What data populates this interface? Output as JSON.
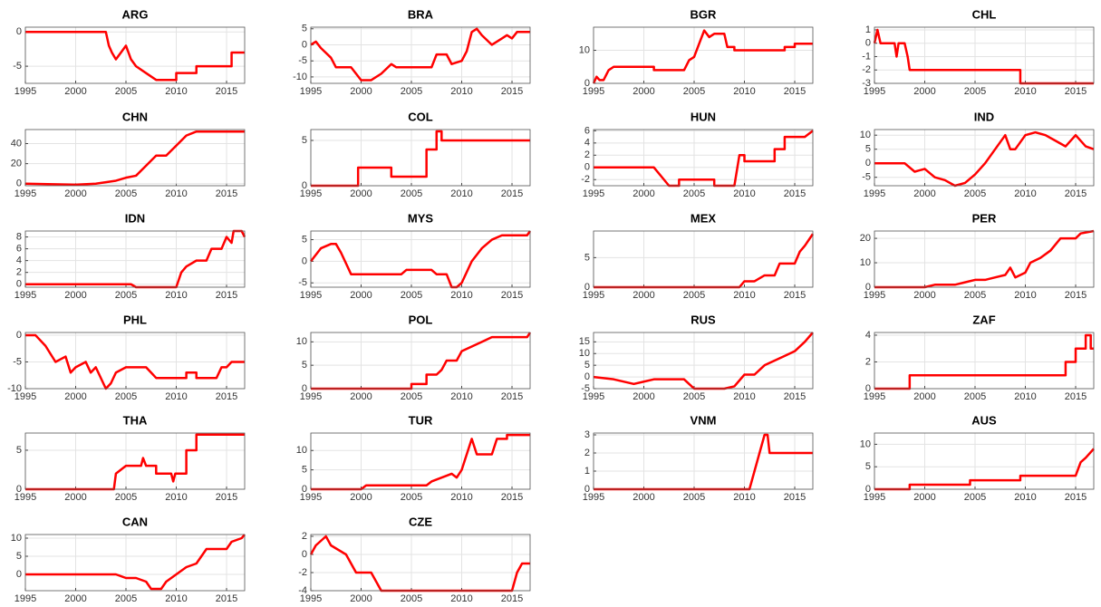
{
  "chart_data": [
    {
      "type": "line",
      "title": "ARG",
      "color": "#ff0000",
      "grid": true,
      "xlim": [
        1995,
        2016.8
      ],
      "xticks": [
        1995,
        2000,
        2005,
        2010,
        2015
      ],
      "ylim": [
        -7.5,
        0.7
      ],
      "yticks": [
        -5,
        0
      ],
      "x": [
        1995,
        2003,
        2003.3,
        2003.6,
        2004,
        2004.5,
        2005,
        2005.5,
        2006,
        2007,
        2008,
        2010,
        2010,
        2012,
        2012,
        2015.5,
        2015.5,
        2016.8
      ],
      "values": [
        0,
        0,
        -2,
        -3,
        -4,
        -3,
        -2,
        -4,
        -5,
        -6,
        -7,
        -7,
        -6,
        -6,
        -5,
        -5,
        -3,
        -3
      ]
    },
    {
      "type": "line",
      "title": "BRA",
      "color": "#ff0000",
      "grid": true,
      "xlim": [
        1995,
        2016.8
      ],
      "xticks": [
        1995,
        2000,
        2005,
        2010,
        2015
      ],
      "ylim": [
        -12,
        5.5
      ],
      "yticks": [
        -10,
        -5,
        0,
        5
      ],
      "x": [
        1995,
        1995.5,
        1996,
        1997,
        1997.5,
        1999,
        1999.5,
        2000,
        2001,
        2002,
        2003,
        2003.5,
        2007,
        2007.5,
        2008.5,
        2009,
        2010,
        2010.5,
        2011,
        2011.5,
        2012,
        2013,
        2013.5,
        2014,
        2014.5,
        2015,
        2015.5,
        2016.8
      ],
      "values": [
        0,
        1,
        -1,
        -4,
        -7,
        -7,
        -9,
        -11,
        -11,
        -9,
        -6,
        -7,
        -7,
        -3,
        -3,
        -6,
        -5,
        -2,
        4,
        5,
        3,
        0,
        1,
        2,
        3,
        2,
        4,
        4
      ]
    },
    {
      "type": "line",
      "title": "BGR",
      "color": "#ff0000",
      "grid": true,
      "xlim": [
        1995,
        2016.8
      ],
      "xticks": [
        1995,
        2000,
        2005,
        2010,
        2015
      ],
      "ylim": [
        0,
        17
      ],
      "yticks": [
        0,
        10
      ],
      "x": [
        1995,
        1995.3,
        1995.6,
        1996,
        1996.5,
        1997,
        2001,
        2001,
        2004,
        2004.5,
        2005,
        2005.5,
        2006,
        2006.5,
        2007,
        2008,
        2008.3,
        2009,
        2009,
        2014,
        2014,
        2015,
        2015,
        2016.8
      ],
      "values": [
        0,
        2,
        1,
        1,
        4,
        5,
        5,
        4,
        4,
        7,
        8,
        12,
        16,
        14,
        15,
        15,
        11,
        11,
        10,
        10,
        11,
        11,
        12,
        12
      ]
    },
    {
      "type": "line",
      "title": "CHL",
      "color": "#ff0000",
      "grid": true,
      "xlim": [
        1995,
        2016.8
      ],
      "xticks": [
        1995,
        2000,
        2005,
        2010,
        2015
      ],
      "ylim": [
        -3,
        1.2
      ],
      "yticks": [
        -3,
        -2,
        -1,
        0,
        1
      ],
      "x": [
        1995,
        1995.3,
        1995.6,
        1997,
        1997.2,
        1997.4,
        1998,
        1998.3,
        1998.5,
        2009.5,
        2009.5,
        2016.8
      ],
      "values": [
        0,
        1,
        0,
        0,
        -1,
        0,
        0,
        -1,
        -2,
        -2,
        -3,
        -3
      ]
    },
    {
      "type": "line",
      "title": "CHN",
      "color": "#ff0000",
      "grid": true,
      "xlim": [
        1995,
        2016.8
      ],
      "xticks": [
        1995,
        2000,
        2005,
        2010,
        2015
      ],
      "ylim": [
        -2,
        54
      ],
      "yticks": [
        0,
        20,
        40
      ],
      "x": [
        1995,
        2000,
        2002,
        2004,
        2005,
        2006,
        2007,
        2008,
        2009,
        2010,
        2011,
        2012,
        2016.8
      ],
      "values": [
        0,
        -1,
        0,
        3,
        6,
        8,
        18,
        28,
        28,
        38,
        48,
        52,
        52
      ]
    },
    {
      "type": "line",
      "title": "COL",
      "color": "#ff0000",
      "grid": true,
      "xlim": [
        1995,
        2016.8
      ],
      "xticks": [
        1995,
        2000,
        2005,
        2010,
        2015
      ],
      "ylim": [
        0,
        6.2
      ],
      "yticks": [
        0,
        5
      ],
      "x": [
        1995,
        1999.7,
        1999.7,
        2003,
        2003,
        2006.5,
        2006.5,
        2007.5,
        2007.5,
        2008,
        2008,
        2016.8
      ],
      "values": [
        0,
        0,
        2,
        2,
        1,
        1,
        4,
        4,
        6,
        6,
        5,
        5
      ]
    },
    {
      "type": "line",
      "title": "HUN",
      "color": "#ff0000",
      "grid": true,
      "xlim": [
        1995,
        2016.8
      ],
      "xticks": [
        1995,
        2000,
        2005,
        2010,
        2015
      ],
      "ylim": [
        -3,
        6.2
      ],
      "yticks": [
        -2,
        0,
        2,
        4,
        6
      ],
      "x": [
        1995,
        2001,
        2002,
        2002.5,
        2003.5,
        2003.5,
        2007,
        2007,
        2009,
        2009.5,
        2010,
        2010,
        2013,
        2013,
        2014,
        2014,
        2016,
        2016.8
      ],
      "values": [
        0,
        0,
        -2,
        -3,
        -3,
        -2,
        -2,
        -3,
        -3,
        2,
        2,
        1,
        1,
        3,
        3,
        5,
        5,
        6
      ]
    },
    {
      "type": "line",
      "title": "IND",
      "color": "#ff0000",
      "grid": true,
      "xlim": [
        1995,
        2016.8
      ],
      "xticks": [
        1995,
        2000,
        2005,
        2010,
        2015
      ],
      "ylim": [
        -8,
        12
      ],
      "yticks": [
        -5,
        0,
        5,
        10
      ],
      "x": [
        1995,
        1998,
        1999,
        2000,
        2001,
        2002,
        2003,
        2004,
        2005,
        2006,
        2007,
        2008,
        2008.5,
        2009,
        2010,
        2011,
        2012,
        2013,
        2014,
        2015,
        2016,
        2016.8
      ],
      "values": [
        0,
        0,
        -3,
        -2,
        -5,
        -6,
        -8,
        -7,
        -4,
        0,
        5,
        10,
        5,
        5,
        10,
        11,
        10,
        8,
        6,
        10,
        6,
        5
      ]
    },
    {
      "type": "line",
      "title": "IDN",
      "color": "#ff0000",
      "grid": true,
      "xlim": [
        1995,
        2016.8
      ],
      "xticks": [
        1995,
        2000,
        2005,
        2010,
        2015
      ],
      "ylim": [
        -0.5,
        9
      ],
      "yticks": [
        0,
        2,
        4,
        6,
        8
      ],
      "x": [
        1995,
        2005.5,
        2006,
        2010,
        2010.5,
        2011,
        2012,
        2013,
        2013.5,
        2014.5,
        2015,
        2015.5,
        2015.7,
        2016.5,
        2016.8
      ],
      "values": [
        0,
        0,
        -0.5,
        -0.5,
        2,
        3,
        4,
        4,
        6,
        6,
        8,
        7,
        9,
        9,
        8
      ]
    },
    {
      "type": "line",
      "title": "MYS",
      "color": "#ff0000",
      "grid": true,
      "xlim": [
        1995,
        2016.8
      ],
      "xticks": [
        1995,
        2000,
        2005,
        2010,
        2015
      ],
      "ylim": [
        -6,
        7
      ],
      "yticks": [
        -5,
        0,
        5
      ],
      "x": [
        1995,
        1996,
        1997,
        1997.5,
        1998,
        1999,
        2004,
        2004.5,
        2007,
        2007.5,
        2008.5,
        2009,
        2009.5,
        2010,
        2011,
        2012,
        2013,
        2014,
        2016.5,
        2016.8
      ],
      "values": [
        0,
        3,
        4,
        4,
        2,
        -3,
        -3,
        -2,
        -2,
        -3,
        -3,
        -6,
        -6,
        -5,
        0,
        3,
        5,
        6,
        6,
        7
      ]
    },
    {
      "type": "line",
      "title": "MEX",
      "color": "#ff0000",
      "grid": true,
      "xlim": [
        1995,
        2016.8
      ],
      "xticks": [
        1995,
        2000,
        2005,
        2010,
        2015
      ],
      "ylim": [
        0,
        9.5
      ],
      "yticks": [
        0,
        5
      ],
      "x": [
        1995,
        2009.5,
        2010,
        2011,
        2012,
        2013,
        2013.5,
        2015,
        2015.5,
        2016,
        2016.8
      ],
      "values": [
        0,
        0,
        1,
        1,
        2,
        2,
        4,
        4,
        6,
        7,
        9
      ]
    },
    {
      "type": "line",
      "title": "PER",
      "color": "#ff0000",
      "grid": true,
      "xlim": [
        1995,
        2016.8
      ],
      "xticks": [
        1995,
        2000,
        2005,
        2010,
        2015
      ],
      "ylim": [
        0,
        23
      ],
      "yticks": [
        0,
        10,
        20
      ],
      "x": [
        1995,
        2000,
        2001,
        2003,
        2004,
        2005,
        2006,
        2007,
        2008,
        2008.5,
        2009,
        2010,
        2010.5,
        2011.5,
        2012.5,
        2013.5,
        2015,
        2015.5,
        2016.8
      ],
      "values": [
        0,
        0,
        1,
        1,
        2,
        3,
        3,
        4,
        5,
        8,
        4,
        6,
        10,
        12,
        15,
        20,
        20,
        22,
        23
      ]
    },
    {
      "type": "line",
      "title": "PHL",
      "color": "#ff0000",
      "grid": true,
      "xlim": [
        1995,
        2016.8
      ],
      "xticks": [
        1995,
        2000,
        2005,
        2010,
        2015
      ],
      "ylim": [
        -10,
        0.5
      ],
      "yticks": [
        -10,
        -5,
        0
      ],
      "x": [
        1995,
        1996,
        1997,
        1998,
        1999,
        1999.5,
        2000,
        2001,
        2001.5,
        2002,
        2003,
        2003.5,
        2004,
        2005,
        2007,
        2007.5,
        2008,
        2011,
        2011,
        2012,
        2012,
        2014,
        2014.5,
        2015,
        2015.5,
        2016.8
      ],
      "values": [
        0,
        0,
        -2,
        -5,
        -4,
        -7,
        -6,
        -5,
        -7,
        -6,
        -10,
        -9,
        -7,
        -6,
        -6,
        -7,
        -8,
        -8,
        -7,
        -7,
        -8,
        -8,
        -6,
        -6,
        -5,
        -5
      ]
    },
    {
      "type": "line",
      "title": "POL",
      "color": "#ff0000",
      "grid": true,
      "xlim": [
        1995,
        2016.8
      ],
      "xticks": [
        1995,
        2000,
        2005,
        2010,
        2015
      ],
      "ylim": [
        0,
        12
      ],
      "yticks": [
        0,
        5,
        10
      ],
      "x": [
        1995,
        2005,
        2005,
        2006.5,
        2006.5,
        2007.5,
        2008,
        2008.5,
        2009.5,
        2010,
        2011,
        2012,
        2013,
        2016.5,
        2016.8
      ],
      "values": [
        0,
        0,
        1,
        1,
        3,
        3,
        4,
        6,
        6,
        8,
        9,
        10,
        11,
        11,
        12
      ]
    },
    {
      "type": "line",
      "title": "RUS",
      "color": "#ff0000",
      "grid": true,
      "xlim": [
        1995,
        2016.8
      ],
      "xticks": [
        1995,
        2000,
        2005,
        2010,
        2015
      ],
      "ylim": [
        -5,
        19
      ],
      "yticks": [
        -5,
        0,
        5,
        10,
        15
      ],
      "x": [
        1995,
        1997,
        1999,
        2000,
        2001,
        2004,
        2005,
        2008,
        2009,
        2010,
        2011,
        2012,
        2013,
        2014,
        2015,
        2016,
        2016.8
      ],
      "values": [
        0,
        -1,
        -3,
        -2,
        -1,
        -1,
        -5,
        -5,
        -4,
        1,
        1,
        5,
        7,
        9,
        11,
        15,
        19
      ]
    },
    {
      "type": "line",
      "title": "ZAF",
      "color": "#ff0000",
      "grid": true,
      "xlim": [
        1995,
        2016.8
      ],
      "xticks": [
        1995,
        2000,
        2005,
        2010,
        2015
      ],
      "ylim": [
        0,
        4.2
      ],
      "yticks": [
        0,
        2,
        4
      ],
      "x": [
        1995,
        1998.5,
        1998.5,
        2014,
        2014,
        2015,
        2015,
        2016,
        2016,
        2016.5,
        2016.5,
        2016.8
      ],
      "values": [
        0,
        0,
        1,
        1,
        2,
        2,
        3,
        3,
        4,
        4,
        3,
        3
      ]
    },
    {
      "type": "line",
      "title": "THA",
      "color": "#ff0000",
      "grid": true,
      "xlim": [
        1995,
        2016.8
      ],
      "xticks": [
        1995,
        2000,
        2005,
        2010,
        2015
      ],
      "ylim": [
        0,
        7.2
      ],
      "yticks": [
        0,
        5
      ],
      "x": [
        1995,
        2003.8,
        2004,
        2005,
        2006.5,
        2006.7,
        2007,
        2008,
        2008,
        2009.5,
        2009.7,
        2009.9,
        2011,
        2011,
        2012,
        2012,
        2016.8
      ],
      "values": [
        0,
        0,
        2,
        3,
        3,
        4,
        3,
        3,
        2,
        2,
        1,
        2,
        2,
        5,
        5,
        7,
        7
      ]
    },
    {
      "type": "line",
      "title": "TUR",
      "color": "#ff0000",
      "grid": true,
      "xlim": [
        1995,
        2016.8
      ],
      "xticks": [
        1995,
        2000,
        2005,
        2010,
        2015
      ],
      "ylim": [
        0,
        14.5
      ],
      "yticks": [
        0,
        5,
        10
      ],
      "x": [
        1995,
        2000,
        2000.5,
        2006.5,
        2007,
        2008,
        2009,
        2009.5,
        2010,
        2011,
        2011.5,
        2013,
        2013.5,
        2014.5,
        2014.5,
        2016.8
      ],
      "values": [
        0,
        0,
        1,
        1,
        2,
        3,
        4,
        3,
        5,
        13,
        9,
        9,
        13,
        13,
        14,
        14
      ]
    },
    {
      "type": "line",
      "title": "VNM",
      "color": "#ff0000",
      "grid": true,
      "xlim": [
        1995,
        2016.8
      ],
      "xticks": [
        1995,
        2000,
        2005,
        2010,
        2015
      ],
      "ylim": [
        0,
        3.1
      ],
      "yticks": [
        0,
        1,
        2,
        3
      ],
      "x": [
        1995,
        2010.5,
        2011,
        2011.5,
        2012,
        2012.3,
        2012.5,
        2016.8
      ],
      "values": [
        0,
        0,
        1,
        2,
        3,
        3,
        2,
        2
      ]
    },
    {
      "type": "line",
      "title": "AUS",
      "color": "#ff0000",
      "grid": true,
      "xlim": [
        1995,
        2016.8
      ],
      "xticks": [
        1995,
        2000,
        2005,
        2010,
        2015
      ],
      "ylim": [
        0,
        12.5
      ],
      "yticks": [
        0,
        5,
        10
      ],
      "x": [
        1995,
        1998.5,
        1998.5,
        2004.5,
        2004.5,
        2009.5,
        2009.5,
        2015,
        2015.5,
        2016,
        2016.8
      ],
      "values": [
        0,
        0,
        1,
        1,
        2,
        2,
        3,
        3,
        6,
        7,
        9
      ]
    },
    {
      "type": "line",
      "title": "CAN",
      "color": "#ff0000",
      "grid": true,
      "xlim": [
        1995,
        2016.8
      ],
      "xticks": [
        1995,
        2000,
        2005,
        2010,
        2015
      ],
      "ylim": [
        -4.5,
        11
      ],
      "yticks": [
        0,
        5,
        10
      ],
      "x": [
        1995,
        2004,
        2005,
        2006,
        2007,
        2007.5,
        2008.5,
        2009,
        2010,
        2011,
        2012,
        2012.5,
        2013,
        2015,
        2015.5,
        2016.5,
        2016.8
      ],
      "values": [
        0,
        0,
        -1,
        -1,
        -2,
        -4,
        -4,
        -2,
        0,
        2,
        3,
        5,
        7,
        7,
        9,
        10,
        11
      ]
    },
    {
      "type": "line",
      "title": "CZE",
      "color": "#ff0000",
      "grid": true,
      "xlim": [
        1995,
        2016.8
      ],
      "xticks": [
        1995,
        2000,
        2005,
        2010,
        2015
      ],
      "ylim": [
        -4,
        2.2
      ],
      "yticks": [
        -4,
        -2,
        0,
        2
      ],
      "x": [
        1995,
        1995.5,
        1996.5,
        1997,
        1998.5,
        1999,
        1999.5,
        2001,
        2001.5,
        2002,
        2015,
        2015.5,
        2016,
        2016.8
      ],
      "values": [
        0,
        1,
        2,
        1,
        0,
        -1,
        -2,
        -2,
        -3,
        -4,
        -4,
        -2,
        -1,
        -1
      ]
    }
  ]
}
